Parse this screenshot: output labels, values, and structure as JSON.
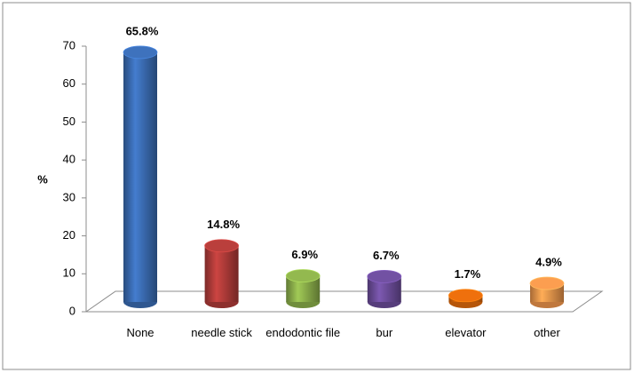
{
  "chart_data": {
    "type": "bar",
    "y_label": "%",
    "categories": [
      "None",
      "needle stick",
      "endodontic file",
      "bur",
      "elevator",
      "other"
    ],
    "values": [
      65.8,
      14.8,
      6.9,
      6.7,
      1.7,
      4.9
    ],
    "value_labels": [
      "65.8%",
      "14.8%",
      "6.9%",
      "6.7%",
      "1.7%",
      "4.9%"
    ],
    "colors": [
      "#3b6db4",
      "#b13c39",
      "#8cb04b",
      "#6d4d9b",
      "#e46b0c",
      "#f0964c"
    ],
    "ylim": [
      0,
      70
    ],
    "yticks": [
      0,
      10,
      20,
      30,
      40,
      50,
      60,
      70
    ]
  }
}
